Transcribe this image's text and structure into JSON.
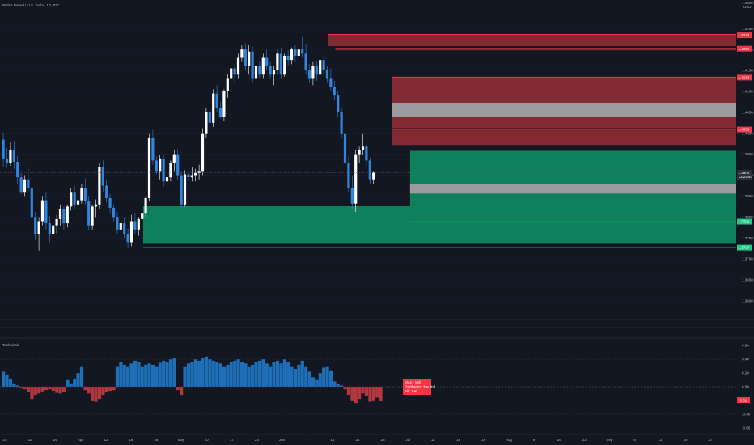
{
  "header": {
    "symbol_title": "British Pound / U.S. Dollar, 1D, IDC",
    "top_right_line1": "1.4000",
    "top_right_line2": "USD"
  },
  "indicator": {
    "name": "Technicals",
    "tooltip_line1": "MAs : Sell",
    "tooltip_line2": "Oscillators: Neutral",
    "tooltip_line3": "All : Sell",
    "value_tag": "-0.21"
  },
  "colors": {
    "background": "#131722",
    "bull": "#ffffff",
    "bear": "#2e86de",
    "supply_zone": "#8b2d34",
    "demand_zone": "#0f8a62",
    "neutral_band": "#9b9b9f",
    "osc_positive": "#1f6fb8",
    "osc_negative": "#b3373f",
    "tag_red": "#f23645",
    "tag_green": "#22c787"
  },
  "chart_data": [
    {
      "type": "candlestick",
      "title": "British Pound / U.S. Dollar, 1D, IDC",
      "y_ticks": [
        "1.4250",
        "1.4200",
        "1.4150",
        "1.4100",
        "1.4050",
        "1.4000",
        "1.3950",
        "1.3900",
        "1.3850",
        "1.3800",
        "1.3750",
        "1.3700",
        "1.3650",
        "1.3600"
      ],
      "y_tick_values": [
        1.425,
        1.42,
        1.415,
        1.41,
        1.405,
        1.4,
        1.395,
        1.39,
        1.385,
        1.38,
        1.375,
        1.37,
        1.365,
        1.36
      ],
      "ylim": [
        1.3565,
        1.4295
      ],
      "x_ticks": [
        "15",
        "22",
        "29",
        "Apr",
        "12",
        "19",
        "26",
        "May",
        "10",
        "17",
        "24",
        "Jun",
        "7",
        "14",
        "21",
        "28",
        "Jul",
        "12",
        "19",
        "26",
        "Aug",
        "9",
        "16",
        "23",
        "Sep",
        "6",
        "13",
        "20",
        "27"
      ],
      "price_tags": [
        {
          "label": "1.4234",
          "color": "red",
          "value": 1.4234
        },
        {
          "label": "1.4202",
          "color": "red",
          "value": 1.4202
        },
        {
          "label": "1.4133",
          "color": "red",
          "value": 1.4133
        },
        {
          "label": "1.4009",
          "color": "red",
          "value": 1.4009
        },
        {
          "label": "1.3906",
          "color": "dark",
          "value": 1.3906
        },
        {
          "label": "13:23:40",
          "color": "dark",
          "value": 1.3896
        },
        {
          "label": "1.3789",
          "color": "green",
          "value": 1.3789
        },
        {
          "label": "1.3727",
          "color": "green",
          "value": 1.3727
        }
      ],
      "zones": [
        {
          "kind": "supply",
          "top": 1.4236,
          "bottom": 1.4208,
          "start_index": 92,
          "edge": 1.4236
        },
        {
          "kind": "supply",
          "top": 1.4204,
          "bottom": 1.4198,
          "start_index": 94,
          "edge": 1.4202
        },
        {
          "kind": "supply",
          "top": 1.4134,
          "bottom": 1.4012,
          "start_index": 110,
          "edge": 1.4134
        },
        {
          "kind": "neutral",
          "top": 1.4073,
          "bottom": 1.4039,
          "start_index": 110
        },
        {
          "kind": "supply",
          "top": 1.4007,
          "bottom": 1.3972,
          "start_index": 110,
          "edge": 1.4009
        },
        {
          "kind": "demand",
          "top": 1.3958,
          "bottom": 1.3826,
          "start_index": 115,
          "edge": 1.3789
        },
        {
          "kind": "neutral",
          "top": 1.3878,
          "bottom": 1.3856,
          "start_index": 115
        },
        {
          "kind": "demand",
          "top": 1.3826,
          "bottom": 1.3738,
          "start_index": 40,
          "edge": 1.3727
        }
      ],
      "candles": [
        [
          1.3985,
          1.4002,
          1.392,
          1.394
        ],
        [
          1.394,
          1.3965,
          1.3918,
          1.393
        ],
        [
          1.393,
          1.3978,
          1.3922,
          1.396
        ],
        [
          1.396,
          1.3982,
          1.3915,
          1.3932
        ],
        [
          1.3932,
          1.3945,
          1.388,
          1.3895
        ],
        [
          1.3895,
          1.3905,
          1.3855,
          1.386
        ],
        [
          1.386,
          1.39,
          1.385,
          1.389
        ],
        [
          1.389,
          1.392,
          1.386,
          1.387
        ],
        [
          1.387,
          1.388,
          1.379,
          1.38
        ],
        [
          1.38,
          1.3812,
          1.3745,
          1.376
        ],
        [
          1.376,
          1.38,
          1.372,
          1.379
        ],
        [
          1.379,
          1.385,
          1.378,
          1.384
        ],
        [
          1.384,
          1.386,
          1.377,
          1.3785
        ],
        [
          1.3785,
          1.3802,
          1.374,
          1.376
        ],
        [
          1.376,
          1.379,
          1.374,
          1.378
        ],
        [
          1.378,
          1.3805,
          1.376,
          1.3795
        ],
        [
          1.3795,
          1.383,
          1.378,
          1.382
        ],
        [
          1.382,
          1.3826,
          1.377,
          1.3785
        ],
        [
          1.3785,
          1.383,
          1.3775,
          1.3825
        ],
        [
          1.3825,
          1.387,
          1.3815,
          1.386
        ],
        [
          1.386,
          1.3875,
          1.382,
          1.383
        ],
        [
          1.383,
          1.385,
          1.381,
          1.384
        ],
        [
          1.384,
          1.388,
          1.3832,
          1.387
        ],
        [
          1.387,
          1.3892,
          1.383,
          1.3838
        ],
        [
          1.3838,
          1.385,
          1.377,
          1.378
        ],
        [
          1.378,
          1.383,
          1.377,
          1.3825
        ],
        [
          1.3825,
          1.3842,
          1.38,
          1.383
        ],
        [
          1.383,
          1.393,
          1.382,
          1.392
        ],
        [
          1.392,
          1.3935,
          1.386,
          1.3875
        ],
        [
          1.3875,
          1.389,
          1.3835,
          1.3845
        ],
        [
          1.3845,
          1.3855,
          1.381,
          1.3822
        ],
        [
          1.3822,
          1.383,
          1.379,
          1.38
        ],
        [
          1.38,
          1.3812,
          1.376,
          1.377
        ],
        [
          1.377,
          1.38,
          1.3745,
          1.3785
        ],
        [
          1.3785,
          1.38,
          1.375,
          1.376
        ],
        [
          1.376,
          1.3772,
          1.3725,
          1.374
        ],
        [
          1.374,
          1.3805,
          1.373,
          1.379
        ],
        [
          1.379,
          1.381,
          1.376,
          1.377
        ],
        [
          1.377,
          1.38,
          1.3755,
          1.3795
        ],
        [
          1.3795,
          1.3815,
          1.378,
          1.381
        ],
        [
          1.381,
          1.385,
          1.38,
          1.3845
        ],
        [
          1.3845,
          1.4,
          1.3838,
          1.399
        ],
        [
          1.399,
          1.4008,
          1.3925,
          1.3935
        ],
        [
          1.3935,
          1.3945,
          1.3902,
          1.391
        ],
        [
          1.391,
          1.3948,
          1.389,
          1.394
        ],
        [
          1.394,
          1.395,
          1.3872,
          1.3885
        ],
        [
          1.3885,
          1.3905,
          1.3855,
          1.3895
        ],
        [
          1.3895,
          1.3935,
          1.3885,
          1.393
        ],
        [
          1.393,
          1.396,
          1.391,
          1.395
        ],
        [
          1.395,
          1.3962,
          1.3888,
          1.39
        ],
        [
          1.39,
          1.391,
          1.3822,
          1.383
        ],
        [
          1.383,
          1.3912,
          1.3825,
          1.3902
        ],
        [
          1.3902,
          1.391,
          1.3885,
          1.3895
        ],
        [
          1.3895,
          1.392,
          1.3885,
          1.39
        ],
        [
          1.39,
          1.3915,
          1.3885,
          1.3905
        ],
        [
          1.3905,
          1.3925,
          1.389,
          1.391
        ],
        [
          1.391,
          1.4012,
          1.39,
          1.4
        ],
        [
          1.4,
          1.406,
          1.399,
          1.405
        ],
        [
          1.405,
          1.407,
          1.4015,
          1.4025
        ],
        [
          1.4025,
          1.4105,
          1.4015,
          1.4095
        ],
        [
          1.4095,
          1.4115,
          1.405,
          1.406
        ],
        [
          1.406,
          1.4075,
          1.4035,
          1.404
        ],
        [
          1.404,
          1.4105,
          1.403,
          1.41
        ],
        [
          1.41,
          1.4142,
          1.4085,
          1.413
        ],
        [
          1.413,
          1.416,
          1.4115,
          1.4155
        ],
        [
          1.4155,
          1.4165,
          1.412,
          1.414
        ],
        [
          1.414,
          1.419,
          1.413,
          1.418
        ],
        [
          1.418,
          1.421,
          1.417,
          1.42
        ],
        [
          1.42,
          1.4215,
          1.415,
          1.416
        ],
        [
          1.416,
          1.421,
          1.414,
          1.4195
        ],
        [
          1.4195,
          1.4208,
          1.412,
          1.413
        ],
        [
          1.413,
          1.4168,
          1.411,
          1.416
        ],
        [
          1.416,
          1.417,
          1.413,
          1.414
        ],
        [
          1.414,
          1.419,
          1.413,
          1.418
        ],
        [
          1.418,
          1.42,
          1.415,
          1.416
        ],
        [
          1.416,
          1.417,
          1.413,
          1.414
        ],
        [
          1.414,
          1.416,
          1.4115,
          1.415
        ],
        [
          1.415,
          1.42,
          1.414,
          1.419
        ],
        [
          1.419,
          1.4205,
          1.413,
          1.414
        ],
        [
          1.414,
          1.419,
          1.4135,
          1.4185
        ],
        [
          1.4185,
          1.4198,
          1.416,
          1.4175
        ],
        [
          1.4175,
          1.4205,
          1.4165,
          1.42
        ],
        [
          1.42,
          1.421,
          1.417,
          1.4185
        ],
        [
          1.4185,
          1.4208,
          1.4175,
          1.42
        ],
        [
          1.42,
          1.423,
          1.418,
          1.419
        ],
        [
          1.419,
          1.4212,
          1.414,
          1.415
        ],
        [
          1.415,
          1.4165,
          1.412,
          1.413
        ],
        [
          1.413,
          1.417,
          1.4115,
          1.416
        ],
        [
          1.416,
          1.4172,
          1.4125,
          1.414
        ],
        [
          1.414,
          1.4185,
          1.413,
          1.4175
        ],
        [
          1.4175,
          1.418,
          1.414,
          1.415
        ],
        [
          1.415,
          1.416,
          1.4122,
          1.413
        ],
        [
          1.413,
          1.4155,
          1.41,
          1.411
        ],
        [
          1.411,
          1.4125,
          1.408,
          1.409
        ],
        [
          1.409,
          1.41,
          1.404,
          1.405
        ],
        [
          1.405,
          1.406,
          1.399,
          1.4
        ],
        [
          1.4,
          1.401,
          1.392,
          1.393
        ],
        [
          1.393,
          1.3945,
          1.386,
          1.387
        ],
        [
          1.387,
          1.39,
          1.382,
          1.3832
        ],
        [
          1.3832,
          1.396,
          1.3812,
          1.395
        ],
        [
          1.395,
          1.3968,
          1.393,
          1.396
        ],
        [
          1.396,
          1.4,
          1.3948,
          1.3968
        ],
        [
          1.3968,
          1.3975,
          1.392,
          1.3935
        ],
        [
          1.3935,
          1.3942,
          1.388,
          1.389
        ],
        [
          1.389,
          1.391,
          1.388,
          1.3906
        ]
      ]
    },
    {
      "type": "bar",
      "title": "Technicals",
      "y_ticks": [
        "0.60",
        "0.40",
        "0.20",
        "0.00",
        "-0.20",
        "-0.40",
        "-0.60"
      ],
      "y_tick_values": [
        0.6,
        0.4,
        0.2,
        0.0,
        -0.2,
        -0.4,
        -0.6
      ],
      "ylim": [
        -0.66,
        0.66
      ],
      "values": [
        0.22,
        0.18,
        0.12,
        0.05,
        0.02,
        -0.02,
        -0.04,
        -0.08,
        -0.18,
        -0.12,
        -0.1,
        -0.07,
        -0.05,
        -0.04,
        -0.06,
        -0.09,
        -0.1,
        -0.08,
        0.1,
        0.05,
        0.12,
        0.2,
        0.3,
        -0.05,
        -0.1,
        -0.2,
        -0.22,
        -0.18,
        -0.12,
        -0.08,
        -0.06,
        -0.05,
        0.3,
        0.36,
        0.32,
        0.3,
        0.34,
        0.38,
        0.36,
        0.3,
        0.32,
        0.34,
        0.32,
        0.3,
        0.35,
        0.38,
        0.36,
        0.4,
        0.42,
        -0.05,
        -0.12,
        0.3,
        0.34,
        0.36,
        0.4,
        0.38,
        0.42,
        0.44,
        0.4,
        0.38,
        0.36,
        0.34,
        0.3,
        0.32,
        0.36,
        0.38,
        0.4,
        0.36,
        0.34,
        0.3,
        0.32,
        0.36,
        0.38,
        0.4,
        0.34,
        0.3,
        0.36,
        0.38,
        0.34,
        0.4,
        0.36,
        0.3,
        0.26,
        0.32,
        0.38,
        0.3,
        0.22,
        0.14,
        0.1,
        0.2,
        0.28,
        0.3,
        0.24,
        0.08,
        0.04,
        0.02,
        -0.04,
        -0.12,
        -0.2,
        -0.24,
        -0.18,
        -0.1,
        -0.14,
        -0.22,
        -0.2,
        -0.16,
        -0.21
      ]
    }
  ]
}
